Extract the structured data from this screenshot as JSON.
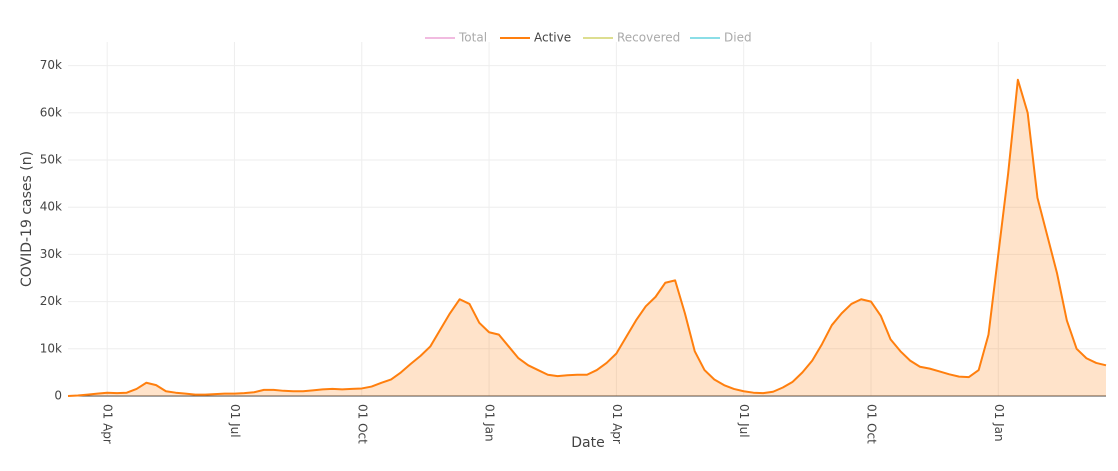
{
  "chart_data": {
    "type": "area",
    "xlabel": "Date",
    "ylabel": "COVID-19 cases (n)",
    "categories": [
      null,
      null,
      null,
      null,
      "01 Apr",
      null,
      null,
      null,
      null,
      null,
      null,
      null,
      null,
      null,
      null,
      null,
      null,
      "01 Jul",
      null,
      null,
      null,
      null,
      null,
      null,
      null,
      null,
      null,
      null,
      null,
      null,
      "01 Oct",
      null,
      null,
      null,
      null,
      null,
      null,
      null,
      null,
      null,
      null,
      null,
      null,
      "01 Jan",
      null,
      null,
      null,
      null,
      null,
      null,
      null,
      null,
      null,
      null,
      null,
      null,
      "01 Apr",
      null,
      null,
      null,
      null,
      null,
      null,
      null,
      null,
      null,
      null,
      null,
      null,
      "01 Jul",
      null,
      null,
      null,
      null,
      null,
      null,
      null,
      null,
      null,
      null,
      null,
      null,
      "01 Oct",
      null,
      null,
      null,
      null,
      null,
      null,
      null,
      null,
      null,
      null,
      null,
      null,
      "01 Jan",
      null,
      null,
      null,
      null,
      null,
      null,
      null,
      null,
      null,
      null,
      null
    ],
    "series": [
      {
        "name": "Total",
        "color": "#e377c2",
        "visible": false
      },
      {
        "name": "Active",
        "color": "#ff7f0e",
        "visible": true,
        "values": [
          0,
          100,
          300,
          500,
          700,
          600,
          700,
          1500,
          2800,
          2300,
          1000,
          700,
          500,
          300,
          300,
          400,
          500,
          500,
          600,
          800,
          1300,
          1300,
          1100,
          1000,
          1000,
          1200,
          1400,
          1500,
          1400,
          1500,
          1600,
          2000,
          2800,
          3500,
          5000,
          6800,
          8500,
          10500,
          14000,
          17500,
          20500,
          19500,
          15500,
          13500,
          13000,
          10500,
          8000,
          6500,
          5500,
          4500,
          4200,
          4400,
          4500,
          4500,
          5500,
          7000,
          9000,
          12500,
          16000,
          19000,
          21000,
          24000,
          24500,
          17500,
          9500,
          5500,
          3500,
          2300,
          1500,
          1000,
          700,
          600,
          900,
          1800,
          3000,
          5000,
          7500,
          11000,
          15000,
          17500,
          19500,
          20500,
          20000,
          17000,
          12000,
          9500,
          7500,
          6200,
          5800,
          5200,
          4600,
          4100,
          4000,
          5500,
          13000,
          30000,
          47000,
          67000,
          60000,
          42000,
          34000,
          26000,
          16000,
          10000,
          8000,
          7000,
          6500
        ]
      },
      {
        "name": "Recovered",
        "color": "#bcbd22",
        "visible": false
      },
      {
        "name": "Died",
        "color": "#17becf",
        "visible": false
      }
    ],
    "ylim": [
      0,
      75000
    ],
    "yticks": [
      0,
      {
        "value": 10000,
        "label": "10k"
      },
      {
        "value": 20000,
        "label": "20k"
      },
      {
        "value": 30000,
        "label": "30k"
      },
      {
        "value": 40000,
        "label": "40k"
      },
      {
        "value": 50000,
        "label": "50k"
      },
      {
        "value": 60000,
        "label": "60k"
      },
      {
        "value": 70000,
        "label": "70k"
      }
    ],
    "grid": true
  }
}
